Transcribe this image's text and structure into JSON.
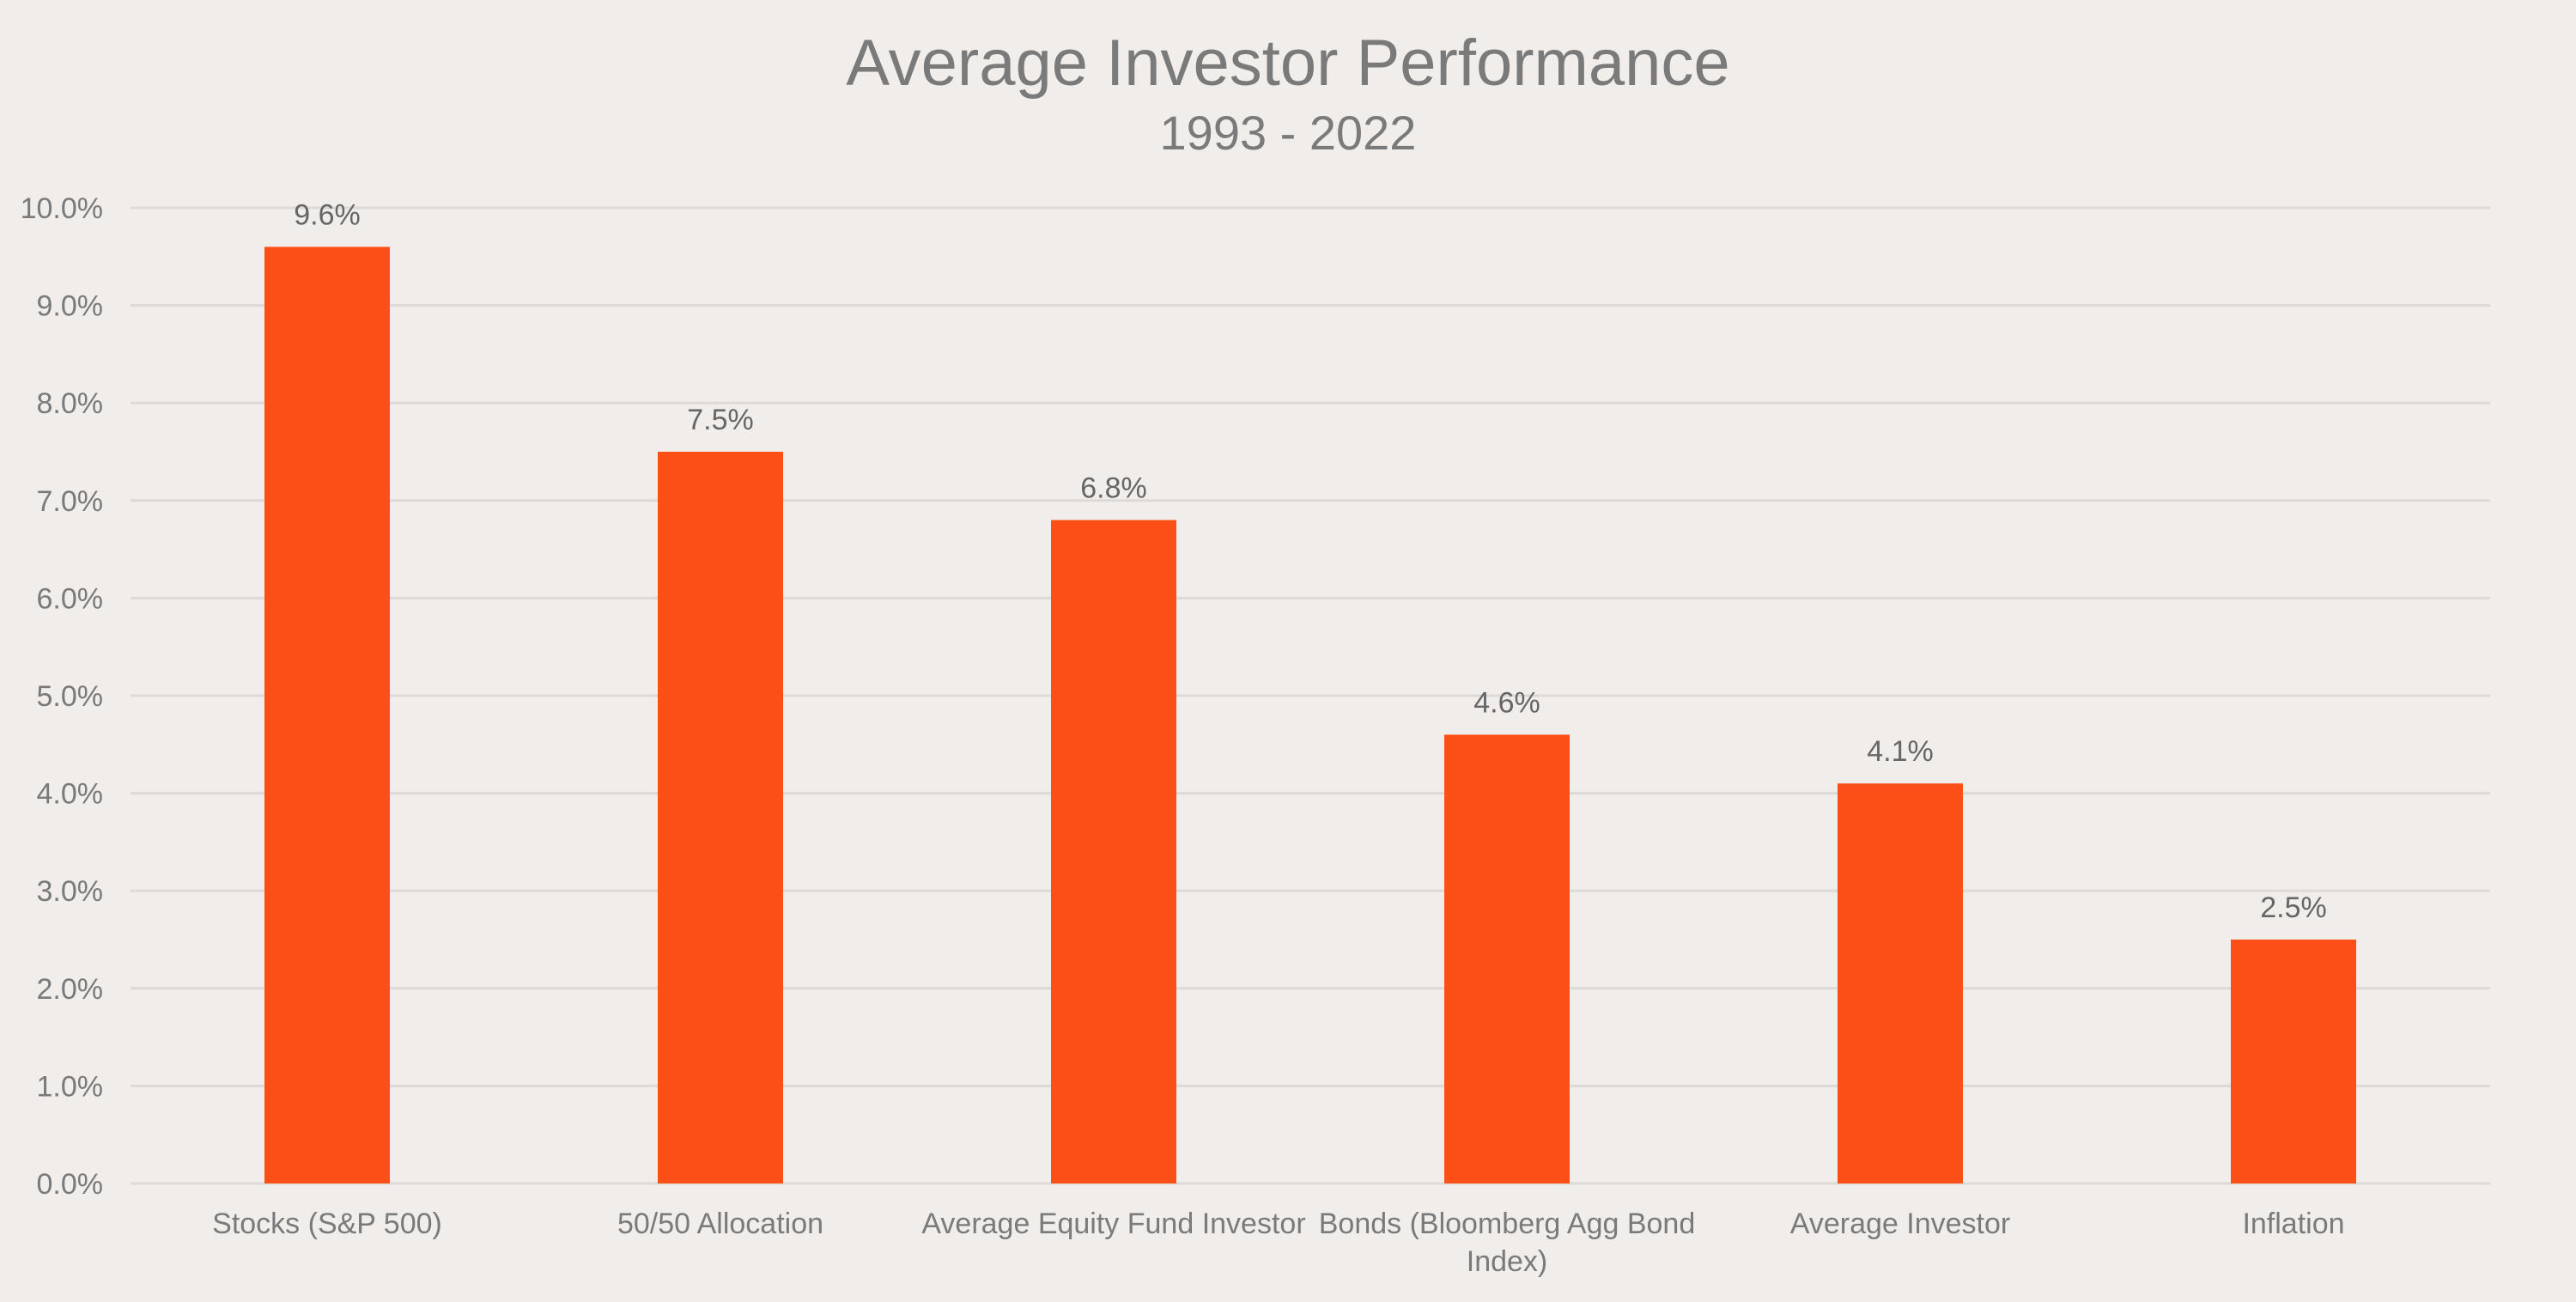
{
  "chart_data": {
    "type": "bar",
    "title": "Average Investor Performance",
    "subtitle": "1993 - 2022",
    "categories": [
      "Stocks (S&P 500)",
      "50/50 Allocation",
      "Average Equity Fund Investor",
      "Bonds (Bloomberg Agg Bond Index)",
      "Average Investor",
      "Inflation"
    ],
    "values": [
      9.6,
      7.5,
      6.8,
      4.6,
      4.1,
      2.5
    ],
    "data_labels": [
      "9.6%",
      "7.5%",
      "6.8%",
      "4.6%",
      "4.1%",
      "2.5%"
    ],
    "y_ticks": [
      "0.0%",
      "1.0%",
      "2.0%",
      "3.0%",
      "4.0%",
      "5.0%",
      "6.0%",
      "7.0%",
      "8.0%",
      "9.0%",
      "10.0%"
    ],
    "ylim": [
      0,
      10
    ],
    "xlabel": "",
    "ylabel": "",
    "grid": true,
    "legend": "none",
    "colors": {
      "bar": "#fc4f18",
      "background": "#f0edea",
      "gridline": "#dcd9d6",
      "text": "#7a7a7a"
    }
  }
}
